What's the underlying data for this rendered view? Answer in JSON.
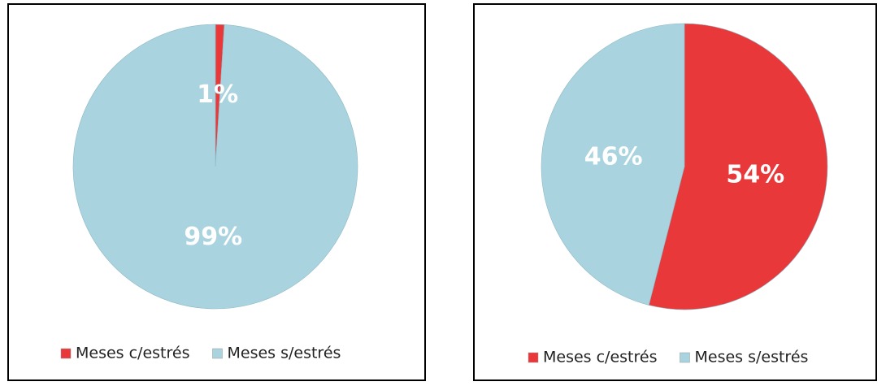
{
  "chart_data": [
    {
      "type": "pie",
      "categories": [
        "Meses c/estrés",
        "Meses s/estrés"
      ],
      "values": [
        1,
        99
      ],
      "value_labels": [
        "1%",
        "99%"
      ],
      "colors": [
        "#e8383a",
        "#a9d3df"
      ],
      "legend": "bottom"
    },
    {
      "type": "pie",
      "categories": [
        "Meses c/estrés",
        "Meses s/estrés"
      ],
      "values": [
        54,
        46
      ],
      "value_labels": [
        "54%",
        "46%"
      ],
      "colors": [
        "#e8383a",
        "#a9d3df"
      ],
      "legend": "bottom"
    }
  ]
}
